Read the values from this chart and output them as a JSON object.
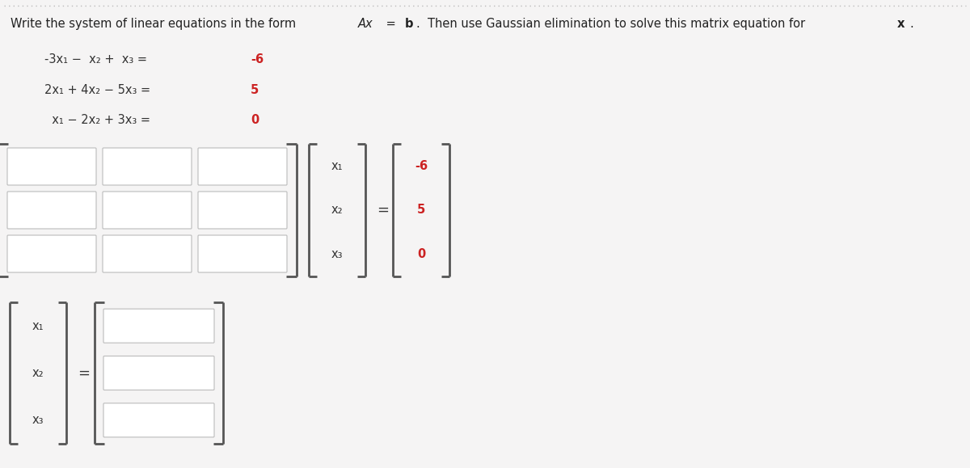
{
  "bg_color": "#f5f4f4",
  "box_color": "#ffffff",
  "box_edge_color": "#bbbbbb",
  "bracket_color": "#555555",
  "red_color": "#cc2222",
  "text_color": "#333333",
  "title_color": "#222222",
  "dotted_line_color": "#bbbbbb",
  "x_vector_labels": [
    "x₁",
    "x₂",
    "x₃"
  ],
  "b_vector_values": [
    "-6",
    "5",
    "0"
  ],
  "sol_vector_labels": [
    "x₁",
    "x₂",
    "x₃"
  ]
}
